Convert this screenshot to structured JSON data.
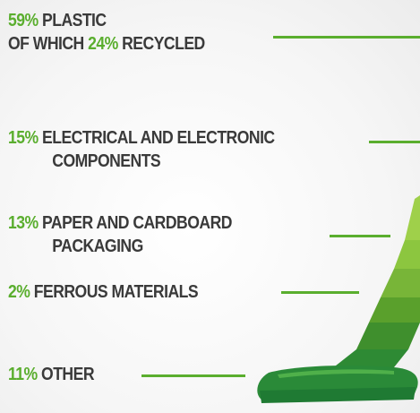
{
  "items": [
    {
      "pct": "59%",
      "line1": " PLASTIC",
      "line2_prefix": "OF WHICH ",
      "line2_pct": "24%",
      "line2_suffix": " RECYCLED"
    },
    {
      "pct": "15%",
      "line1": " ELECTRICAL AND ELECTRONIC",
      "line2": "COMPONENTS"
    },
    {
      "pct": "13%",
      "line1": " PAPER AND CARDBOARD",
      "line2": "PACKAGING"
    },
    {
      "pct": "2%",
      "line1": " FERROUS MATERIALS"
    },
    {
      "pct": "11%",
      "line1": " OTHER"
    }
  ],
  "colors": {
    "accent": "#5aae2e",
    "text": "#3a3a3a",
    "vacuum_dark": "#1f7a33",
    "vacuum_mid": "#5aa02c",
    "vacuum_light": "#8cc63f"
  }
}
